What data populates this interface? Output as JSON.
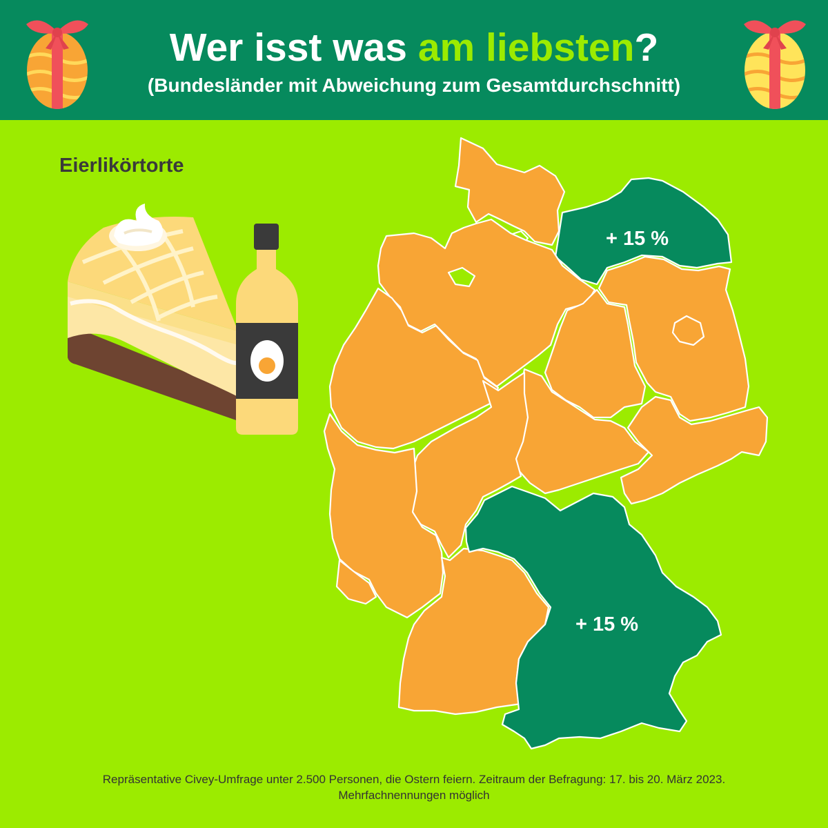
{
  "header": {
    "title_main": "Wer isst was ",
    "title_accent": "am liebsten",
    "title_end": "?",
    "subtitle": "(Bundesländer mit Abweichung zum Gesamtdurchschnitt)"
  },
  "category": "Eierlikörtorte",
  "map": {
    "highlight_color": "#068a5d",
    "base_color": "#f8a535",
    "background_color": "#9ceb00",
    "highlighted_states": [
      {
        "id": "mecklenburg-vorpommern",
        "value_label": "+ 15 %"
      },
      {
        "id": "bayern",
        "value_label": "+ 15 %"
      }
    ]
  },
  "footer": {
    "line1": "Repräsentative Civey-Umfrage unter 2.500 Personen, die Ostern feiern. Zeitraum der Befragung: 17. bis 20. März 2023.",
    "line2": "Mehrfachnennungen möglich"
  },
  "icons": [
    "easter-egg-icon",
    "cake-slice-icon",
    "liqueur-bottle-icon"
  ]
}
